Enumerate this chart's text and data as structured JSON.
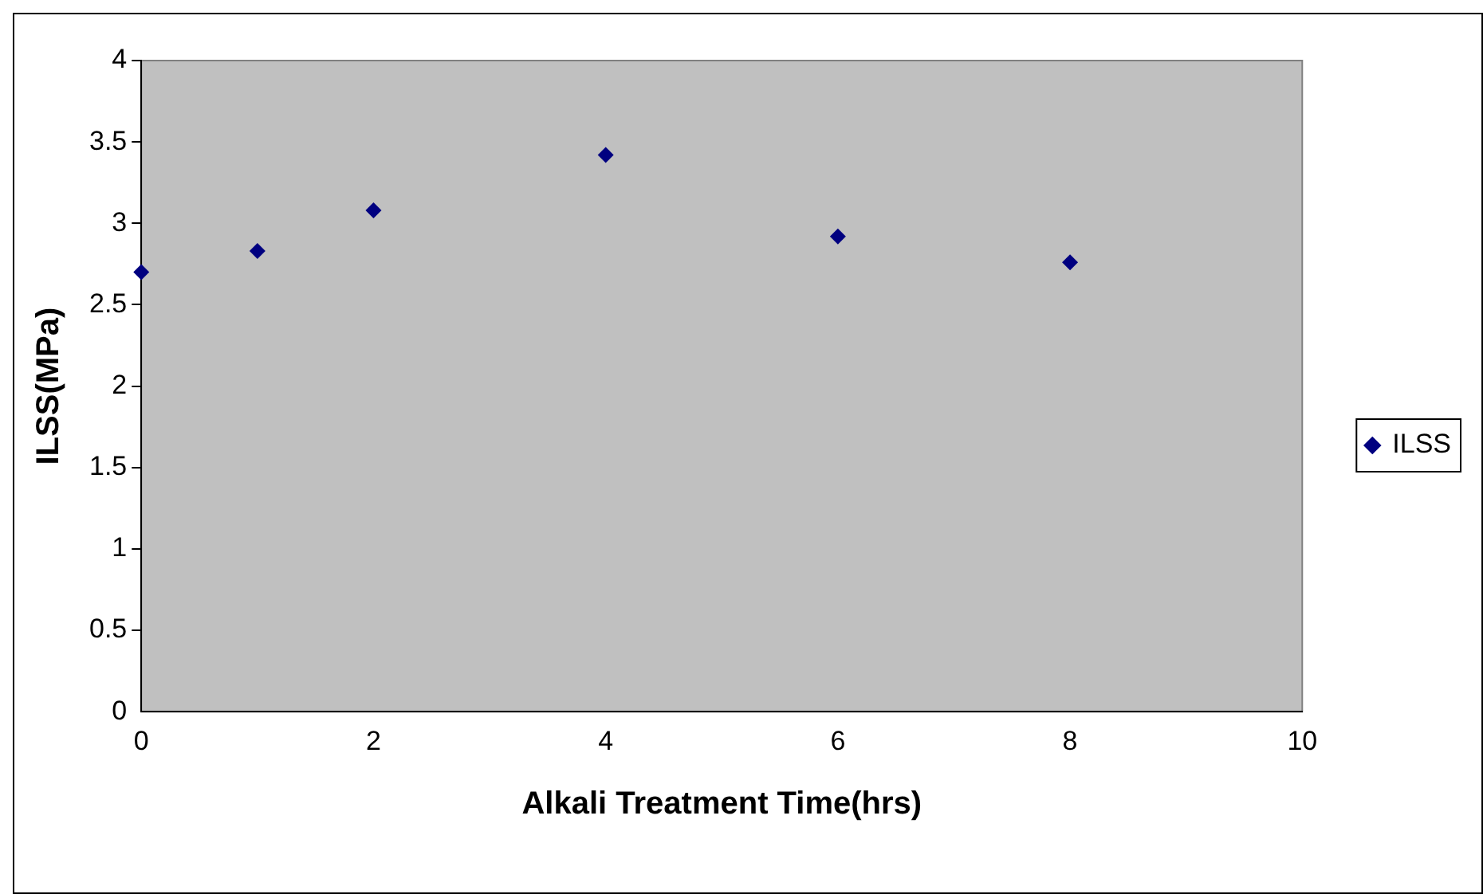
{
  "chart_data": {
    "type": "scatter",
    "xlabel": "Alkali Treatment Time(hrs)",
    "ylabel": "ILSS(MPa)",
    "x": [
      0,
      1,
      2,
      4,
      6,
      8
    ],
    "series": [
      {
        "name": "ILSS",
        "color": "#000080",
        "values": [
          2.7,
          2.83,
          3.08,
          3.42,
          2.92,
          2.76
        ]
      }
    ],
    "xlim": [
      0,
      10
    ],
    "xticks": [
      0,
      2,
      4,
      6,
      8,
      10
    ],
    "ylim": [
      0,
      4
    ],
    "yticks": [
      0,
      0.5,
      1,
      1.5,
      2,
      2.5,
      3,
      3.5,
      4
    ],
    "grid": false,
    "legend": "right",
    "marker": "diamond"
  }
}
